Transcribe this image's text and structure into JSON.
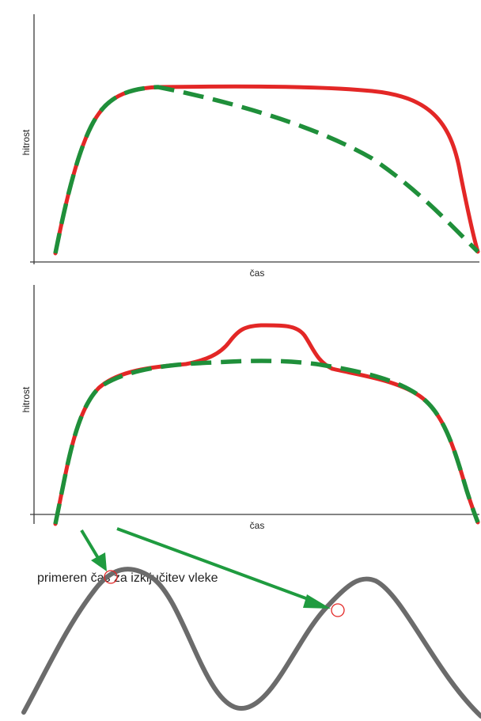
{
  "colors": {
    "actual_speed": "#e32726",
    "reference_speed": "#1f8f3a",
    "wave": "#6b6b6b",
    "arrow": "#1f9b3f",
    "marker": "#e32726",
    "axis": "#3a3a3a"
  },
  "top_chart": {
    "ylabel": "hitrost",
    "xlabel": "čas",
    "series": [
      {
        "style": "solid",
        "color": "red",
        "shape": "rises steeply, plateaus, drops sharply at end"
      },
      {
        "style": "dashed",
        "color": "green",
        "shape": "rises steeply, peaks early, declines gradually"
      }
    ]
  },
  "middle_chart": {
    "ylabel": "hitrost",
    "xlabel": "čas",
    "series": [
      {
        "style": "solid",
        "color": "red",
        "shape": "plateau with a raised bump in the middle"
      },
      {
        "style": "dashed",
        "color": "green",
        "shape": "smooth plateau"
      }
    ]
  },
  "bottom_diagram": {
    "annotation": "primeren čas za izključitev vleke",
    "markers": 2,
    "wave": "sinusoidal terrain profile"
  }
}
